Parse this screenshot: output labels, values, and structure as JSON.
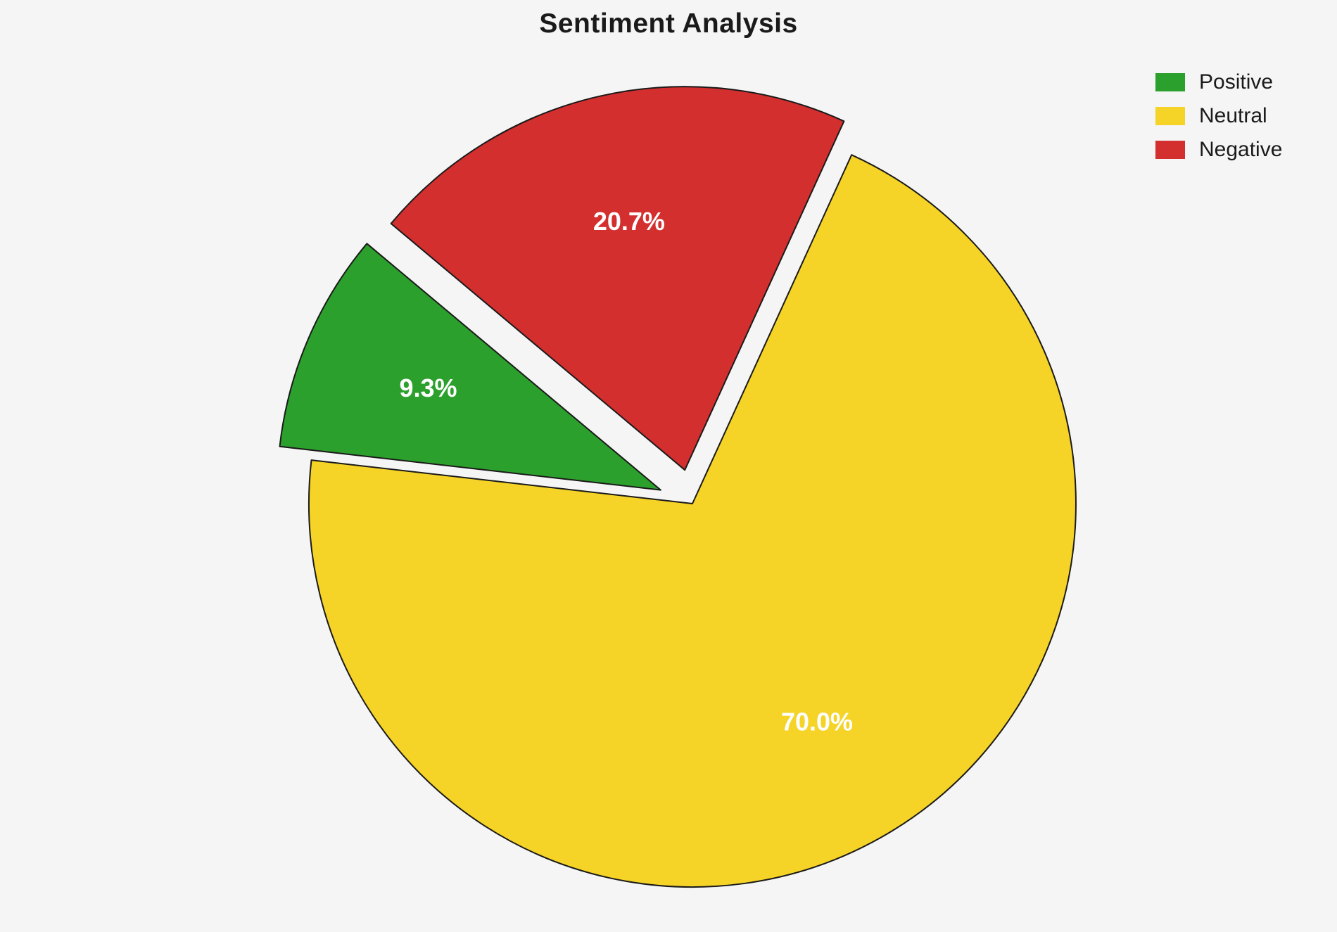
{
  "chart_data": {
    "type": "pie",
    "title": "Sentiment Analysis",
    "labels": [
      "Positive",
      "Neutral",
      "Negative"
    ],
    "values": [
      9.3,
      70.0,
      20.7
    ],
    "percent_labels": [
      "9.3%",
      "70.0%",
      "20.7%"
    ],
    "colors": [
      "#2ca02c",
      "#f5d327",
      "#d32f2f"
    ],
    "explode": [
      0.09,
      0,
      0.09
    ],
    "start_angle": 140,
    "direction": "counterclockwise",
    "legend_position": "upper right",
    "legend_entries": [
      "Positive",
      "Neutral",
      "Negative"
    ],
    "background": "#f5f5f5",
    "slice_edge_color": "#1a1a1a",
    "percent_label_color": "#ffffff"
  }
}
